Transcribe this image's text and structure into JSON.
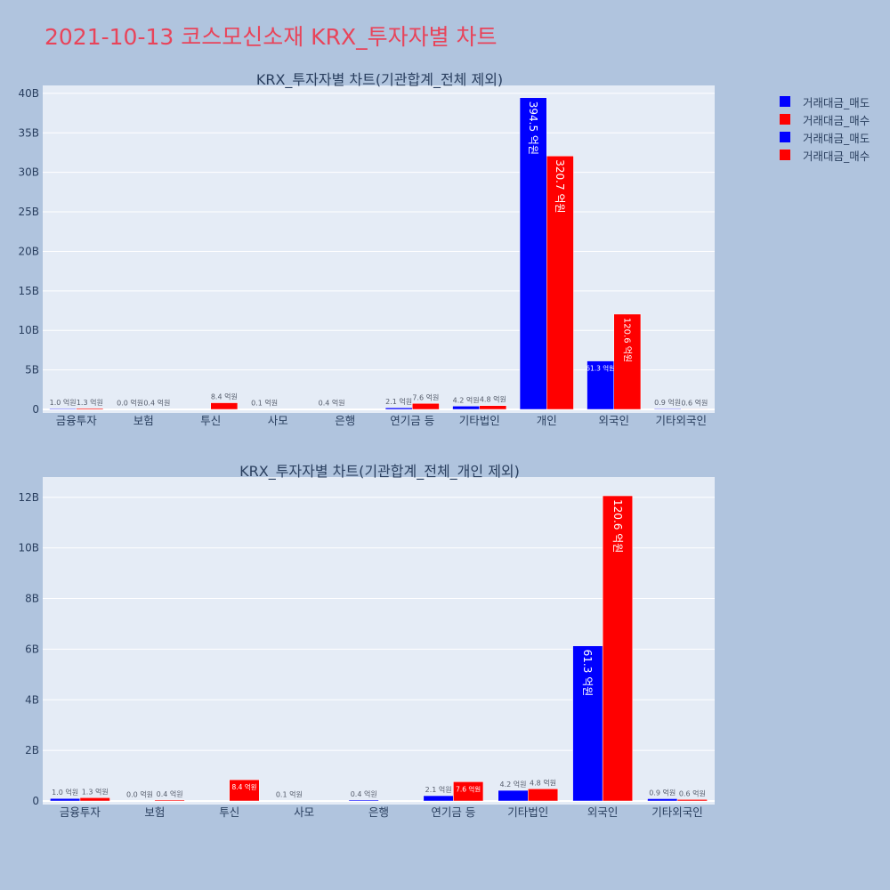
{
  "page": {
    "title": "2021-10-13 코스모신소재 KRX_투자자별 차트"
  },
  "legend": {
    "items": [
      {
        "label": "거래대금_매도",
        "color": "#0000ff"
      },
      {
        "label": "거래대금_매수",
        "color": "#ff0000"
      },
      {
        "label": "거래대금_매도",
        "color": "#0000ff"
      },
      {
        "label": "거래대금_매수",
        "color": "#ff0000"
      }
    ]
  },
  "chart_data": [
    {
      "type": "bar",
      "title": "KRX_투자자별 차트(기관합계_전체 제외)",
      "categories": [
        "금융투자",
        "보험",
        "투신",
        "사모",
        "은행",
        "연기금 등",
        "기타법인",
        "개인",
        "외국인",
        "기타외국인"
      ],
      "ylim": [
        0,
        41000000000
      ],
      "yticks": [
        0,
        5000000000,
        10000000000,
        15000000000,
        20000000000,
        25000000000,
        30000000000,
        35000000000,
        40000000000
      ],
      "ytick_labels": [
        "0",
        "5B",
        "10B",
        "15B",
        "20B",
        "25B",
        "30B",
        "35B",
        "40B"
      ],
      "series": [
        {
          "name": "거래대금_매도",
          "color": "#0000ff",
          "values": [
            100000000,
            0,
            0,
            10000000,
            40000000,
            210000000,
            420000000,
            39450000000,
            6130000000,
            90000000
          ],
          "labels": [
            "1.0 억원",
            "0.0 억원",
            "",
            "0.1 억원",
            "0.4 억원",
            "2.1 억원",
            "4.2 억원",
            "394.5 억원",
            "61.3 억원",
            "0.9 억원"
          ]
        },
        {
          "name": "거래대금_매수",
          "color": "#ff0000",
          "values": [
            130000000,
            40000000,
            840000000,
            0,
            0,
            760000000,
            480000000,
            32070000000,
            12060000000,
            60000000
          ],
          "labels": [
            "1.3 억원",
            "0.4 억원",
            "8.4 억원",
            "",
            "",
            "7.6 억원",
            "4.8 억원",
            "320.7 억원",
            "120.6 억원",
            "0.6 억원"
          ]
        }
      ]
    },
    {
      "type": "bar",
      "title": "KRX_투자자별 차트(기관합계_전체_개인 제외)",
      "categories": [
        "금융투자",
        "보험",
        "투신",
        "사모",
        "은행",
        "연기금 등",
        "기타법인",
        "외국인",
        "기타외국인"
      ],
      "ylim": [
        0,
        12800000000
      ],
      "yticks": [
        0,
        2000000000,
        4000000000,
        6000000000,
        8000000000,
        10000000000,
        12000000000
      ],
      "ytick_labels": [
        "0",
        "2B",
        "4B",
        "6B",
        "8B",
        "10B",
        "12B"
      ],
      "series": [
        {
          "name": "거래대금_매도",
          "color": "#0000ff",
          "values": [
            100000000,
            0,
            0,
            10000000,
            40000000,
            210000000,
            420000000,
            6130000000,
            90000000
          ],
          "labels": [
            "1.0 억원",
            "0.0 억원",
            "",
            "0.1 억원",
            "0.4 억원",
            "2.1 억원",
            "4.2 억원",
            "61.3 억원",
            "0.9 억원"
          ]
        },
        {
          "name": "거래대금_매수",
          "color": "#ff0000",
          "values": [
            130000000,
            40000000,
            840000000,
            0,
            0,
            760000000,
            480000000,
            12060000000,
            60000000
          ],
          "labels": [
            "1.3 억원",
            "0.4 억원",
            "8.4 억원",
            "",
            "",
            "7.6 억원",
            "4.8 억원",
            "120.6 억원",
            "0.6 억원"
          ]
        }
      ]
    }
  ]
}
